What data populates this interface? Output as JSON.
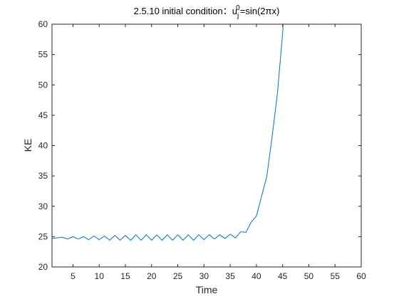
{
  "chart_data": {
    "type": "line",
    "title": {
      "prefix": "2.5.10 initial condition：",
      "var": "u",
      "sub": "j",
      "sup": "0",
      "rest": "=sin(2πx)"
    },
    "xlabel": "Time",
    "ylabel": "KE",
    "xlim": [
      1,
      60
    ],
    "ylim": [
      20,
      60
    ],
    "xticks": [
      5,
      10,
      15,
      20,
      25,
      30,
      35,
      40,
      45,
      50,
      55,
      60
    ],
    "yticks": [
      20,
      25,
      30,
      35,
      40,
      45,
      50,
      55,
      60
    ],
    "grid": false,
    "line_color": "#0072bd",
    "series": [
      {
        "x": [
          1,
          2,
          3,
          4,
          5,
          6,
          7,
          8,
          9,
          10,
          11,
          12,
          13,
          14,
          15,
          16,
          17,
          18,
          19,
          20,
          21,
          22,
          23,
          24,
          25,
          26,
          27,
          28,
          29,
          30,
          31,
          32,
          33,
          34,
          35,
          36,
          37,
          38,
          39,
          40,
          41,
          42,
          43,
          44,
          45,
          45.1
        ],
        "values": [
          24.7,
          24.8,
          24.9,
          24.6,
          25.0,
          24.6,
          25.0,
          24.5,
          25.1,
          24.5,
          25.1,
          24.4,
          25.2,
          24.4,
          25.2,
          24.4,
          25.3,
          24.4,
          25.3,
          24.4,
          25.3,
          24.4,
          25.3,
          24.4,
          25.3,
          24.4,
          25.3,
          24.4,
          25.3,
          24.5,
          25.3,
          24.6,
          25.3,
          24.7,
          25.4,
          24.8,
          25.8,
          25.7,
          27.4,
          28.4,
          31.7,
          35.0,
          41.5,
          48.5,
          58.5,
          60.0
        ]
      }
    ]
  }
}
